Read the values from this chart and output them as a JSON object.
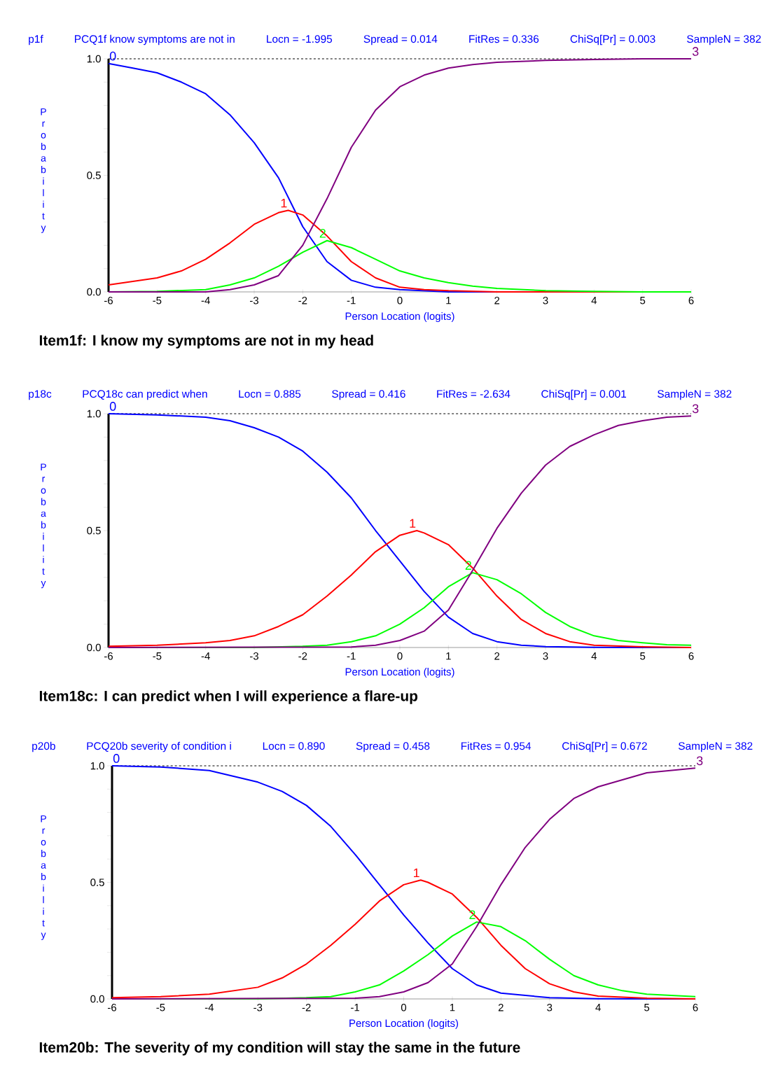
{
  "chart_data": [
    {
      "type": "line",
      "title": "Item1f: I know my symptoms are not in my head",
      "annotations": [
        "p1f",
        "PCQ1f know symptoms are not in",
        "Locn = -1.995",
        "Spread = 0.014",
        "FitRes = 0.336",
        "ChiSq[Pr] = 0.003",
        "SampleN = 382"
      ],
      "xlabel": "Person Location (logits)",
      "ylabel": "Probability",
      "xlim": [
        -6,
        6
      ],
      "ylim": [
        0,
        1
      ],
      "xticks": [
        -6,
        -5,
        -4,
        -3,
        -2,
        -1,
        0,
        1,
        2,
        3,
        4,
        5,
        6
      ],
      "yticks": [
        {
          "value": 0,
          "label": "0.0"
        },
        {
          "value": 0.1,
          "label": null
        },
        {
          "value": 0.2,
          "label": null
        },
        {
          "value": 0.3,
          "label": null
        },
        {
          "value": 0.4,
          "label": null
        },
        {
          "value": 0.5,
          "label": "0.5"
        },
        {
          "value": 0.6,
          "label": null
        },
        {
          "value": 0.7,
          "label": null
        },
        {
          "value": 0.8,
          "label": null
        },
        {
          "value": 0.9,
          "label": null
        },
        {
          "value": 1,
          "label": "1.0"
        }
      ],
      "ref_lines": [
        {
          "axis": "y",
          "value": 1,
          "color": "#000000",
          "line_style": "dashed"
        }
      ],
      "series": [
        {
          "name": "0",
          "color": "#0000ff",
          "x": [
            -6,
            -5.5,
            -5,
            -4.5,
            -4,
            -3.5,
            -3,
            -2.5,
            -2,
            -1.5,
            -1,
            -0.5,
            0,
            1,
            2,
            3
          ],
          "values": [
            0.98,
            0.96,
            0.94,
            0.9,
            0.85,
            0.76,
            0.64,
            0.49,
            0.28,
            0.13,
            0.05,
            0.02,
            0.01,
            0,
            0,
            0
          ]
        },
        {
          "name": "1",
          "color": "#ff0000",
          "x": [
            -6,
            -5,
            -4.5,
            -4,
            -3.5,
            -3,
            -2.5,
            -2.3,
            -2,
            -1.5,
            -1,
            -0.5,
            0,
            0.5,
            1,
            2,
            3,
            4,
            5,
            6
          ],
          "values": [
            0.03,
            0.06,
            0.09,
            0.14,
            0.21,
            0.29,
            0.34,
            0.35,
            0.33,
            0.24,
            0.13,
            0.06,
            0.02,
            0.01,
            0.005,
            0,
            0,
            0,
            0,
            0
          ]
        },
        {
          "name": "2",
          "color": "#00ff00",
          "x": [
            -6,
            -5,
            -4,
            -3.5,
            -3,
            -2.5,
            -2,
            -1.5,
            -1,
            -0.5,
            0,
            0.5,
            1,
            1.5,
            2,
            3,
            4,
            5,
            6
          ],
          "values": [
            0,
            0.002,
            0.01,
            0.03,
            0.06,
            0.11,
            0.17,
            0.22,
            0.19,
            0.14,
            0.09,
            0.06,
            0.04,
            0.025,
            0.015,
            0.005,
            0.002,
            0,
            0
          ]
        },
        {
          "name": "3",
          "color": "#800080",
          "x": [
            -6,
            -4,
            -3.5,
            -3,
            -2.5,
            -2,
            -1.5,
            -1,
            -0.5,
            0,
            0.5,
            1,
            1.5,
            2,
            3,
            4,
            5,
            6
          ],
          "values": [
            0,
            0,
            0.01,
            0.03,
            0.07,
            0.2,
            0.4,
            0.62,
            0.78,
            0.88,
            0.93,
            0.96,
            0.975,
            0.985,
            0.993,
            0.997,
            1,
            1
          ]
        }
      ]
    },
    {
      "type": "line",
      "title": "Item18c: I can predict when I will experience a flare-up",
      "annotations": [
        "p18c",
        "PCQ18c can predict when",
        "Locn = 0.885",
        "Spread = 0.416",
        "FitRes = -2.634",
        "ChiSq[Pr] = 0.001",
        "SampleN = 382"
      ],
      "xlabel": "Person Location (logits)",
      "ylabel": "Probability",
      "xlim": [
        -6,
        6
      ],
      "ylim": [
        0,
        1
      ],
      "xticks": [
        -6,
        -5,
        -4,
        -3,
        -2,
        -1,
        0,
        1,
        2,
        3,
        4,
        5,
        6
      ],
      "yticks": [
        {
          "value": 0,
          "label": "0.0"
        },
        {
          "value": 0.1,
          "label": null
        },
        {
          "value": 0.2,
          "label": null
        },
        {
          "value": 0.3,
          "label": null
        },
        {
          "value": 0.4,
          "label": null
        },
        {
          "value": 0.5,
          "label": "0.5"
        },
        {
          "value": 0.6,
          "label": null
        },
        {
          "value": 0.7,
          "label": null
        },
        {
          "value": 0.8,
          "label": null
        },
        {
          "value": 0.9,
          "label": null
        },
        {
          "value": 1,
          "label": "1.0"
        }
      ],
      "ref_lines": [
        {
          "axis": "y",
          "value": 1,
          "color": "#000000",
          "line_style": "dashed"
        }
      ],
      "series": [
        {
          "name": "0",
          "color": "#0000ff",
          "x": [
            -6,
            -5,
            -4,
            -3.5,
            -3,
            -2.5,
            -2,
            -1.5,
            -1,
            -0.5,
            0,
            0.5,
            1,
            1.5,
            2,
            2.5,
            3,
            4,
            5,
            6
          ],
          "values": [
            1,
            0.995,
            0.985,
            0.97,
            0.94,
            0.9,
            0.84,
            0.75,
            0.64,
            0.5,
            0.37,
            0.24,
            0.13,
            0.06,
            0.025,
            0.01,
            0.004,
            0.001,
            0,
            0
          ]
        },
        {
          "name": "1",
          "color": "#ff0000",
          "x": [
            -6,
            -5,
            -4,
            -3.5,
            -3,
            -2.5,
            -2,
            -1.5,
            -1,
            -0.5,
            0,
            0.35,
            0.5,
            1,
            1.5,
            2,
            2.5,
            3,
            3.5,
            4,
            5,
            6
          ],
          "values": [
            0.005,
            0.01,
            0.02,
            0.03,
            0.05,
            0.09,
            0.14,
            0.22,
            0.31,
            0.41,
            0.48,
            0.5,
            0.49,
            0.44,
            0.34,
            0.22,
            0.12,
            0.06,
            0.025,
            0.01,
            0.003,
            0
          ]
        },
        {
          "name": "2",
          "color": "#00ff00",
          "x": [
            -6,
            -3,
            -2,
            -1.5,
            -1,
            -0.5,
            0,
            0.5,
            1,
            1.5,
            2,
            2.5,
            3,
            3.5,
            4,
            4.5,
            5,
            5.5,
            6
          ],
          "values": [
            0,
            0,
            0.005,
            0.01,
            0.025,
            0.05,
            0.1,
            0.17,
            0.26,
            0.32,
            0.29,
            0.23,
            0.15,
            0.09,
            0.05,
            0.03,
            0.02,
            0.012,
            0.01
          ]
        },
        {
          "name": "3",
          "color": "#800080",
          "x": [
            -6,
            -1,
            -0.5,
            0,
            0.5,
            1,
            1.5,
            2,
            2.5,
            3,
            3.5,
            4,
            4.5,
            5,
            5.5,
            6
          ],
          "values": [
            0,
            0.002,
            0.01,
            0.03,
            0.07,
            0.16,
            0.33,
            0.51,
            0.66,
            0.78,
            0.86,
            0.91,
            0.95,
            0.97,
            0.985,
            0.99
          ]
        }
      ]
    },
    {
      "type": "line",
      "title": "Item20b: The severity of my condition will stay the same in the future",
      "annotations": [
        "p20b",
        "PCQ20b severity of condition i",
        "Locn = 0.890",
        "Spread = 0.458",
        "FitRes = 0.954",
        "ChiSq[Pr] = 0.672",
        "SampleN = 382"
      ],
      "xlabel": "Person Location (logits)",
      "ylabel": "Probability",
      "xlim": [
        -6,
        6
      ],
      "ylim": [
        0,
        1
      ],
      "xticks": [
        -6,
        -5,
        -4,
        -3,
        -2,
        -1,
        0,
        1,
        2,
        3,
        4,
        5,
        6
      ],
      "yticks": [
        {
          "value": 0,
          "label": "0.0"
        },
        {
          "value": 0.1,
          "label": null
        },
        {
          "value": 0.2,
          "label": null
        },
        {
          "value": 0.3,
          "label": null
        },
        {
          "value": 0.4,
          "label": null
        },
        {
          "value": 0.5,
          "label": "0.5"
        },
        {
          "value": 0.6,
          "label": null
        },
        {
          "value": 0.7,
          "label": null
        },
        {
          "value": 0.8,
          "label": null
        },
        {
          "value": 0.9,
          "label": null
        },
        {
          "value": 1,
          "label": "1.0"
        }
      ],
      "ref_lines": [
        {
          "axis": "y",
          "value": 1,
          "color": "#000000",
          "line_style": "dashed"
        }
      ],
      "series": [
        {
          "name": "0",
          "color": "#0000ff",
          "x": [
            -6,
            -5,
            -4,
            -3,
            -2.5,
            -2,
            -1.5,
            -1,
            -0.5,
            0,
            0.5,
            1,
            1.5,
            2,
            3,
            4,
            5,
            6
          ],
          "values": [
            1,
            0.995,
            0.98,
            0.93,
            0.89,
            0.83,
            0.74,
            0.62,
            0.49,
            0.36,
            0.24,
            0.13,
            0.06,
            0.025,
            0.005,
            0.001,
            0,
            0
          ]
        },
        {
          "name": "1",
          "color": "#ff0000",
          "x": [
            -6,
            -5,
            -4,
            -3,
            -2.5,
            -2,
            -1.5,
            -1,
            -0.5,
            0,
            0.35,
            0.5,
            1,
            1.5,
            2,
            2.5,
            3,
            3.5,
            4,
            5,
            6
          ],
          "values": [
            0.005,
            0.01,
            0.02,
            0.05,
            0.09,
            0.15,
            0.23,
            0.32,
            0.42,
            0.49,
            0.51,
            0.5,
            0.45,
            0.35,
            0.23,
            0.13,
            0.065,
            0.03,
            0.012,
            0.003,
            0
          ]
        },
        {
          "name": "2",
          "color": "#00ff00",
          "x": [
            -6,
            -3,
            -2,
            -1.5,
            -1,
            -0.5,
            0,
            0.5,
            1,
            1.5,
            2,
            2.5,
            3,
            3.5,
            4,
            4.5,
            5,
            6
          ],
          "values": [
            0,
            0,
            0.005,
            0.01,
            0.03,
            0.06,
            0.12,
            0.19,
            0.27,
            0.33,
            0.31,
            0.25,
            0.17,
            0.1,
            0.06,
            0.035,
            0.02,
            0.01
          ]
        },
        {
          "name": "3",
          "color": "#800080",
          "x": [
            -6,
            -1,
            -0.5,
            0,
            0.5,
            1,
            1.5,
            2,
            2.5,
            3,
            3.5,
            4,
            4.5,
            5,
            6
          ],
          "values": [
            0,
            0.003,
            0.01,
            0.03,
            0.07,
            0.15,
            0.31,
            0.49,
            0.65,
            0.77,
            0.86,
            0.91,
            0.94,
            0.97,
            0.99
          ]
        }
      ]
    }
  ]
}
